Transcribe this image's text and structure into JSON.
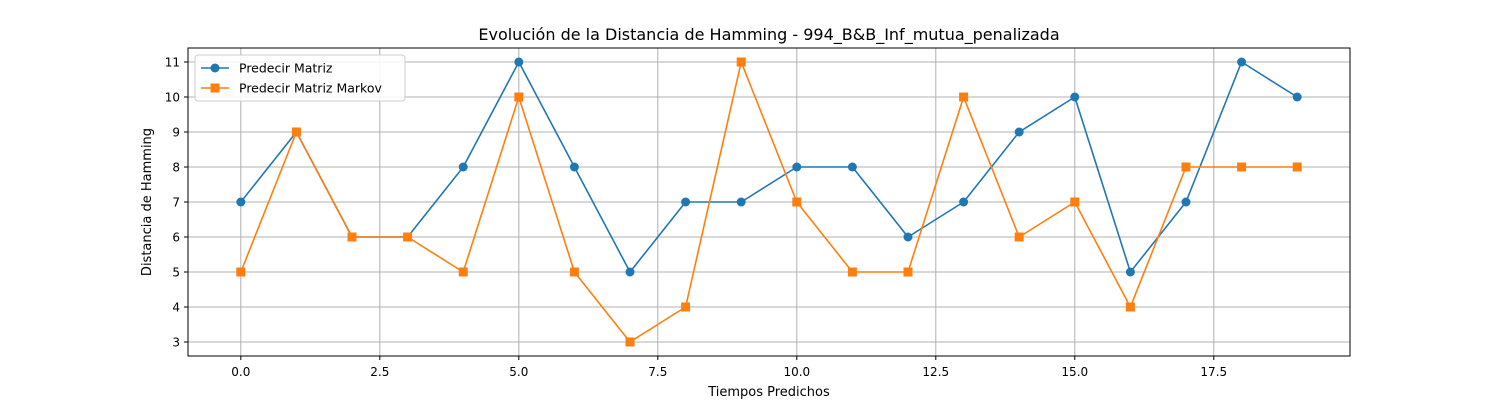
{
  "chart_data": {
    "type": "line",
    "title": "Evolución de la Distancia de Hamming - 994_B&B_Inf_mutua_penalizada",
    "xlabel": "Tiempos Predichos",
    "ylabel": "Distancia de Hamming",
    "x": [
      0,
      1,
      2,
      3,
      4,
      5,
      6,
      7,
      8,
      9,
      10,
      11,
      12,
      13,
      14,
      15,
      16,
      17,
      18,
      19
    ],
    "xlim": [
      -0.95,
      19.95
    ],
    "ylim": [
      2.6,
      11.4
    ],
    "x_ticks": [
      0.0,
      2.5,
      5.0,
      7.5,
      10.0,
      12.5,
      15.0,
      17.5
    ],
    "x_tick_labels": [
      "0.0",
      "2.5",
      "5.0",
      "7.5",
      "10.0",
      "12.5",
      "15.0",
      "17.5"
    ],
    "y_ticks": [
      3,
      4,
      5,
      6,
      7,
      8,
      9,
      10,
      11
    ],
    "y_tick_labels": [
      "3",
      "4",
      "5",
      "6",
      "7",
      "8",
      "9",
      "10",
      "11"
    ],
    "grid": true,
    "legend_position": "upper-left",
    "series": [
      {
        "name": "Predecir Matriz",
        "color": "#1f77b4",
        "marker": "circle",
        "values": [
          7,
          9,
          6,
          6,
          8,
          11,
          8,
          5,
          7,
          7,
          8,
          8,
          6,
          7,
          9,
          10,
          5,
          7,
          11,
          10
        ]
      },
      {
        "name": "Predecir Matriz Markov",
        "color": "#ff7f0e",
        "marker": "square",
        "values": [
          5,
          9,
          6,
          6,
          5,
          10,
          5,
          3,
          4,
          11,
          7,
          5,
          5,
          10,
          6,
          7,
          4,
          8,
          8,
          8
        ]
      }
    ]
  }
}
